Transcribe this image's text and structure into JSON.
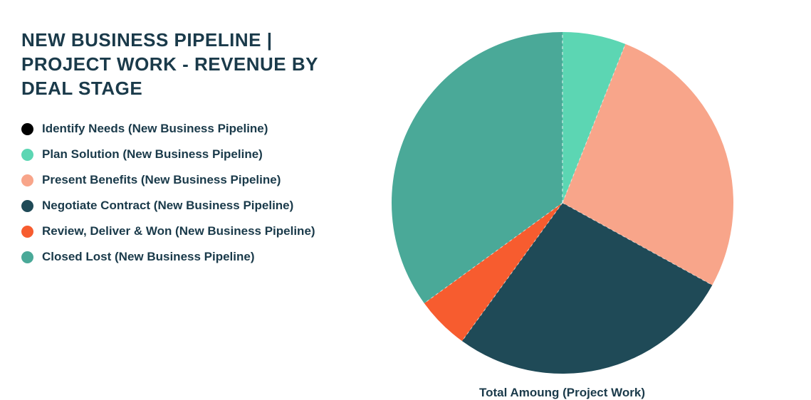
{
  "title": "NEW BUSINESS PIPELINE | PROJECT WORK - REVENUE BY DEAL STAGE",
  "caption": "Total Amoung (Project Work)",
  "chart": {
    "type": "pie",
    "start_angle_deg": 90,
    "direction": "clockwise",
    "radius": 240,
    "divider_color": "#ffffff",
    "divider_dash": "4 4",
    "background_color": "#ffffff",
    "title_color": "#1a3a4a",
    "label_color": "#1a3a4a",
    "title_fontsize": 26,
    "label_fontsize": 17
  },
  "legend": [
    {
      "label": "Identify Needs (New Business Pipeline)",
      "color": "#000000",
      "value": 0
    },
    {
      "label": "Plan Solution (New Business Pipeline)",
      "color": "#5cd6b3",
      "value": 6
    },
    {
      "label": "Present Benefits (New Business Pipeline)",
      "color": "#f8a58a",
      "value": 27
    },
    {
      "label": "Negotiate Contract (New Business Pipeline)",
      "color": "#1f4a57",
      "value": 27
    },
    {
      "label": "Review, Deliver & Won (New Business Pipeline)",
      "color": "#f75c2f",
      "value": 5
    },
    {
      "label": "Closed Lost (New Business Pipeline)",
      "color": "#4aa998",
      "value": 35
    }
  ]
}
